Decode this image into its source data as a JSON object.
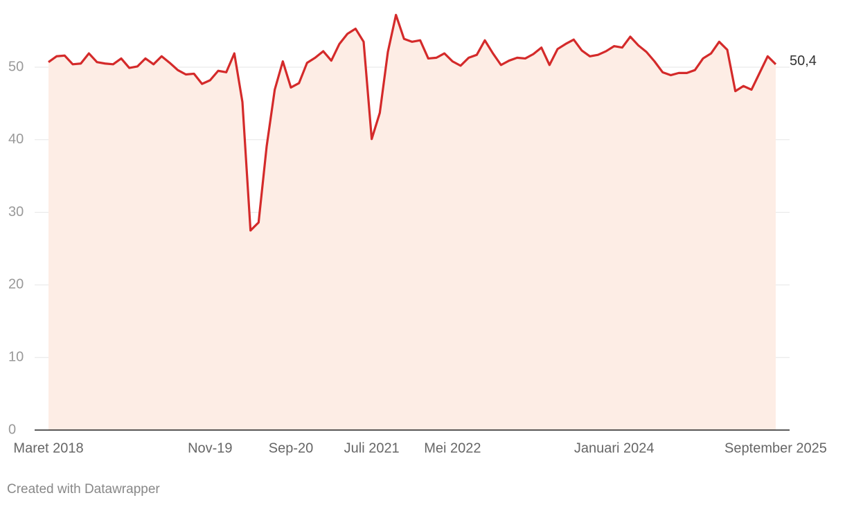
{
  "chart_data": {
    "type": "area-line",
    "categories": [
      "Maret 2018",
      null,
      null,
      null,
      null,
      null,
      null,
      null,
      null,
      null,
      null,
      null,
      null,
      null,
      null,
      null,
      null,
      null,
      null,
      null,
      "Nov-19",
      null,
      null,
      null,
      null,
      null,
      null,
      null,
      null,
      null,
      "Sep-20",
      null,
      null,
      null,
      null,
      null,
      null,
      null,
      null,
      null,
      "Juli 2021",
      null,
      null,
      null,
      null,
      null,
      null,
      null,
      null,
      null,
      "Mei 2022",
      null,
      null,
      null,
      null,
      null,
      null,
      null,
      null,
      null,
      null,
      null,
      null,
      null,
      null,
      null,
      null,
      null,
      null,
      null,
      "Januari 2024",
      null,
      null,
      null,
      null,
      null,
      null,
      null,
      null,
      null,
      null,
      null,
      null,
      null,
      null,
      null,
      null,
      null,
      null,
      null,
      "September 2025"
    ],
    "series": [
      {
        "color": "#d42a2a",
        "fill": "#fdede5",
        "values": [
          50.7,
          51.5,
          51.6,
          50.4,
          50.5,
          51.9,
          50.7,
          50.5,
          50.4,
          51.2,
          49.9,
          50.1,
          51.2,
          50.4,
          51.5,
          50.6,
          49.6,
          49.0,
          49.1,
          47.7,
          48.2,
          49.5,
          49.3,
          51.9,
          45.2,
          27.5,
          28.6,
          39.1,
          46.9,
          50.8,
          47.2,
          47.8,
          50.6,
          51.3,
          52.2,
          50.9,
          53.2,
          54.6,
          55.3,
          53.5,
          40.1,
          43.7,
          52.1,
          57.2,
          53.9,
          53.5,
          53.7,
          51.2,
          51.3,
          51.9,
          50.8,
          50.2,
          51.3,
          51.7,
          53.7,
          51.9,
          50.3,
          50.9,
          51.3,
          51.2,
          51.8,
          52.7,
          50.3,
          52.5,
          53.2,
          53.8,
          52.3,
          51.5,
          51.7,
          52.2,
          52.9,
          52.7,
          54.2,
          53.0,
          52.1,
          50.8,
          49.3,
          48.9,
          49.2,
          49.2,
          49.6,
          51.2,
          51.9,
          53.5,
          52.4,
          46.7,
          47.4,
          46.9,
          49.2,
          51.5,
          50.4
        ],
        "value_labels": [
          null,
          null,
          null,
          null,
          null,
          null,
          null,
          null,
          null,
          null,
          null,
          null,
          null,
          null,
          null,
          null,
          null,
          null,
          null,
          null,
          null,
          null,
          null,
          null,
          null,
          null,
          null,
          null,
          null,
          null,
          null,
          null,
          null,
          null,
          null,
          null,
          null,
          null,
          null,
          null,
          null,
          null,
          null,
          null,
          null,
          null,
          null,
          null,
          null,
          null,
          null,
          null,
          null,
          null,
          null,
          null,
          null,
          null,
          null,
          null,
          null,
          null,
          null,
          null,
          null,
          null,
          null,
          null,
          null,
          null,
          null,
          null,
          null,
          null,
          null,
          null,
          null,
          null,
          null,
          null,
          null,
          null,
          null,
          null,
          null,
          null,
          null,
          null,
          null,
          null,
          "50,4"
        ]
      }
    ],
    "ylim": [
      0,
      60
    ],
    "yticks": [
      0,
      10,
      20,
      30,
      40,
      50
    ],
    "grid": true,
    "credit": "Created with Datawrapper"
  }
}
